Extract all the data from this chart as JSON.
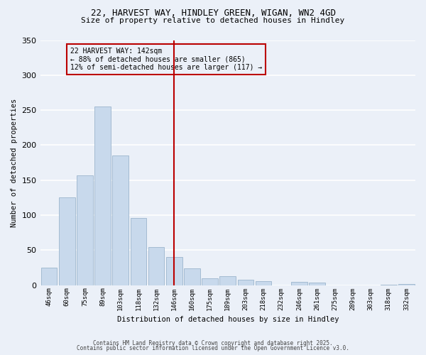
{
  "title_line1": "22, HARVEST WAY, HINDLEY GREEN, WIGAN, WN2 4GD",
  "title_line2": "Size of property relative to detached houses in Hindley",
  "xlabel": "Distribution of detached houses by size in Hindley",
  "ylabel": "Number of detached properties",
  "bar_labels": [
    "46sqm",
    "60sqm",
    "75sqm",
    "89sqm",
    "103sqm",
    "118sqm",
    "132sqm",
    "146sqm",
    "160sqm",
    "175sqm",
    "189sqm",
    "203sqm",
    "218sqm",
    "232sqm",
    "246sqm",
    "261sqm",
    "275sqm",
    "289sqm",
    "303sqm",
    "318sqm",
    "332sqm"
  ],
  "bar_values": [
    25,
    125,
    157,
    255,
    185,
    96,
    54,
    40,
    24,
    10,
    13,
    8,
    6,
    0,
    5,
    4,
    0,
    0,
    0,
    1,
    2
  ],
  "bar_color": "#C8D9EC",
  "bar_edge_color": "#9BB5CC",
  "bg_color": "#EBF0F8",
  "grid_color": "#FFFFFF",
  "vline_index": 7,
  "vline_color": "#BB0000",
  "annotation_text": "22 HARVEST WAY: 142sqm\n← 88% of detached houses are smaller (865)\n12% of semi-detached houses are larger (117) →",
  "ylim": [
    0,
    350
  ],
  "yticks": [
    0,
    50,
    100,
    150,
    200,
    250,
    300,
    350
  ],
  "footer_line1": "Contains HM Land Registry data © Crown copyright and database right 2025.",
  "footer_line2": "Contains public sector information licensed under the Open Government Licence v3.0."
}
